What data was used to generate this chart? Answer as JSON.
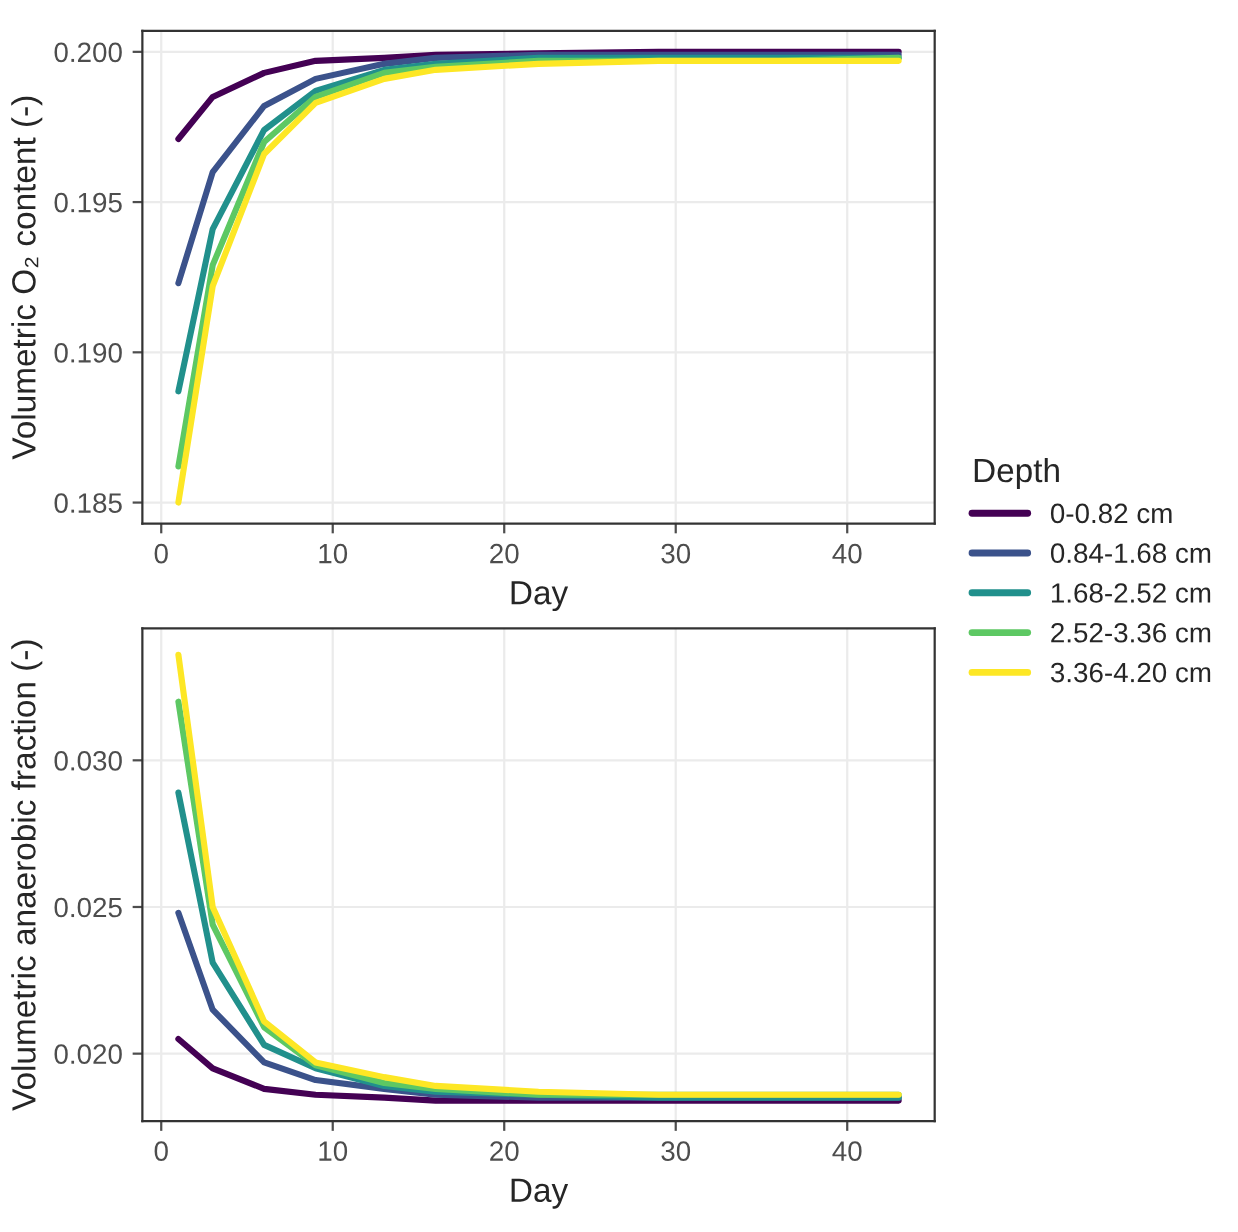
{
  "chart_data": [
    {
      "type": "line",
      "xlabel": "Day",
      "ylabel": "Volumetric O₂ content (-)",
      "legend_title": "Depth",
      "legend": "right",
      "grid": true,
      "xlim": [
        -1.1,
        45.1
      ],
      "xticks": [
        0,
        10,
        20,
        30,
        40
      ],
      "ylim": [
        0.1843,
        0.2007
      ],
      "yticks": [
        {
          "value": 0.185,
          "label": "0.185"
        },
        {
          "value": 0.19,
          "label": "0.190"
        },
        {
          "value": 0.195,
          "label": "0.195"
        },
        {
          "value": 0.2,
          "label": "0.200"
        }
      ],
      "x": [
        1,
        3,
        6,
        9,
        13,
        16,
        22,
        29,
        36,
        43
      ],
      "series": [
        {
          "name": "0-0.82 cm",
          "color": "#440154",
          "values": [
            0.1971,
            0.1985,
            0.1993,
            0.1997,
            0.1998,
            0.1999,
            0.19995,
            0.2,
            0.2,
            0.2
          ]
        },
        {
          "name": "0.84-1.68 cm",
          "color": "#3b528b",
          "values": [
            0.1923,
            0.196,
            0.1982,
            0.1991,
            0.1996,
            0.1998,
            0.1999,
            0.1999,
            0.1999,
            0.1999
          ]
        },
        {
          "name": "1.68-2.52 cm",
          "color": "#21908c",
          "values": [
            0.1887,
            0.1941,
            0.1974,
            0.1987,
            0.1994,
            0.1996,
            0.1998,
            0.1998,
            0.1998,
            0.1998
          ]
        },
        {
          "name": "2.52-3.36 cm",
          "color": "#5dc863",
          "values": [
            0.1862,
            0.1929,
            0.197,
            0.1985,
            0.1993,
            0.1995,
            0.1997,
            0.1997,
            0.1997,
            0.1998
          ]
        },
        {
          "name": "3.36-4.20 cm",
          "color": "#fde725",
          "values": [
            0.185,
            0.1922,
            0.1966,
            0.1983,
            0.1991,
            0.1994,
            0.1996,
            0.1997,
            0.1997,
            0.1997
          ]
        }
      ]
    },
    {
      "type": "line",
      "xlabel": "Day",
      "ylabel": "Volumetric anaerobic fraction (-)",
      "grid": true,
      "xlim": [
        -1.1,
        45.1
      ],
      "xticks": [
        0,
        10,
        20,
        30,
        40
      ],
      "ylim": [
        0.0177,
        0.0345
      ],
      "yticks": [
        {
          "value": 0.02,
          "label": "0.020"
        },
        {
          "value": 0.025,
          "label": "0.025"
        },
        {
          "value": 0.03,
          "label": "0.030"
        }
      ],
      "x": [
        1,
        3,
        6,
        9,
        13,
        16,
        22,
        29,
        36,
        43
      ],
      "series": [
        {
          "color": "#440154",
          "values": [
            0.0205,
            0.0195,
            0.0188,
            0.0186,
            0.0185,
            0.0184,
            0.0184,
            0.0184,
            0.0184,
            0.0184
          ]
        },
        {
          "color": "#3b528b",
          "values": [
            0.0248,
            0.0215,
            0.0197,
            0.0191,
            0.0188,
            0.0186,
            0.0185,
            0.0185,
            0.0185,
            0.0185
          ]
        },
        {
          "color": "#21908c",
          "values": [
            0.0289,
            0.0231,
            0.0203,
            0.0195,
            0.0189,
            0.0187,
            0.0186,
            0.0185,
            0.0185,
            0.0185
          ]
        },
        {
          "color": "#5dc863",
          "values": [
            0.032,
            0.0244,
            0.0209,
            0.0196,
            0.019,
            0.0188,
            0.0186,
            0.0186,
            0.0186,
            0.0186
          ]
        },
        {
          "color": "#fde725",
          "values": [
            0.0336,
            0.025,
            0.0211,
            0.0197,
            0.0192,
            0.0189,
            0.0187,
            0.0186,
            0.0186,
            0.0186
          ]
        }
      ]
    }
  ]
}
